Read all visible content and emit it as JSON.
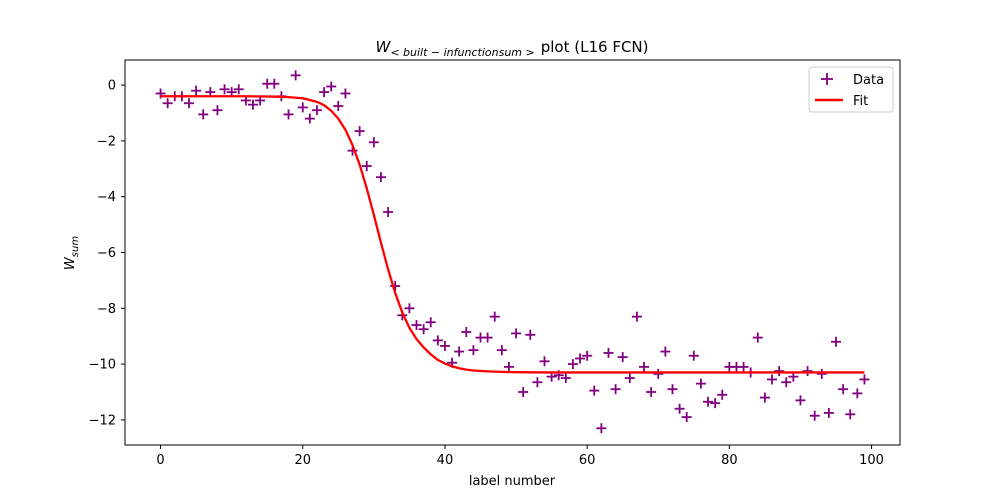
{
  "chart_data": {
    "type": "scatter",
    "title": "W_{<built-infunctionsum>} plot (L16 FCN)",
    "title_parts": {
      "math": "W",
      "sub": "< built − infunctionsum >",
      "rest": "plot (L16 FCN)"
    },
    "xlabel": "label number",
    "ylabel_parts": {
      "main": "W",
      "sub": "sum"
    },
    "xlim": [
      -5,
      104
    ],
    "ylim": [
      -12.9,
      0.9
    ],
    "xticks": [
      0,
      20,
      40,
      60,
      80,
      100
    ],
    "yticks": [
      0,
      -2,
      -4,
      -6,
      -8,
      -10,
      -12
    ],
    "xtick_labels": [
      "0",
      "20",
      "40",
      "60",
      "80",
      "100"
    ],
    "ytick_labels": [
      "0",
      "−2",
      "−4",
      "−6",
      "−8",
      "−10",
      "−12"
    ],
    "legend_position": "top-right",
    "grid": false,
    "series": [
      {
        "name": "Data",
        "kind": "scatter",
        "marker": "+",
        "color": "#800080",
        "x": [
          0,
          1,
          2,
          3,
          4,
          5,
          6,
          7,
          8,
          9,
          10,
          11,
          12,
          13,
          14,
          15,
          16,
          17,
          18,
          19,
          20,
          21,
          22,
          23,
          24,
          25,
          26,
          27,
          28,
          29,
          30,
          31,
          32,
          33,
          34,
          35,
          36,
          37,
          38,
          39,
          40,
          41,
          42,
          43,
          44,
          45,
          46,
          47,
          48,
          49,
          50,
          51,
          52,
          53,
          54,
          55,
          56,
          57,
          58,
          59,
          60,
          61,
          62,
          63,
          64,
          65,
          66,
          67,
          68,
          69,
          70,
          71,
          72,
          73,
          74,
          75,
          76,
          77,
          78,
          79,
          80,
          81,
          82,
          83,
          84,
          85,
          86,
          87,
          88,
          89,
          90,
          91,
          92,
          93,
          94,
          95,
          96,
          97,
          98,
          99
        ],
        "y": [
          -0.3,
          -0.65,
          -0.4,
          -0.4,
          -0.65,
          -0.2,
          -1.05,
          -0.25,
          -0.9,
          -0.15,
          -0.25,
          -0.15,
          -0.55,
          -0.7,
          -0.55,
          0.05,
          0.05,
          -0.4,
          -1.05,
          0.35,
          -0.8,
          -1.2,
          -0.9,
          -0.25,
          -0.05,
          -0.75,
          -0.3,
          -2.35,
          -1.65,
          -2.9,
          -2.05,
          -3.3,
          -4.55,
          -7.2,
          -8.25,
          -8.0,
          -8.6,
          -8.75,
          -8.5,
          -9.15,
          -9.35,
          -9.95,
          -9.55,
          -8.85,
          -9.5,
          -9.05,
          -9.05,
          -8.3,
          -9.5,
          -10.1,
          -8.9,
          -11.0,
          -8.95,
          -10.65,
          -9.9,
          -10.45,
          -10.4,
          -10.5,
          -10.0,
          -9.8,
          -9.7,
          -10.95,
          -12.3,
          -9.6,
          -10.9,
          -9.75,
          -10.5,
          -8.3,
          -10.1,
          -11.0,
          -10.35,
          -9.55,
          -10.9,
          -11.6,
          -11.9,
          -9.7,
          -10.7,
          -11.35,
          -11.4,
          -11.1,
          -10.1,
          -10.1,
          -10.1,
          -10.3,
          -9.05,
          -11.2,
          -10.55,
          -10.25,
          -10.65,
          -10.45,
          -11.3,
          -10.25,
          -11.85,
          -10.35,
          -11.75,
          -9.2,
          -10.9,
          -11.8,
          -11.05,
          -10.55
        ]
      },
      {
        "name": "Fit",
        "kind": "line",
        "color": "#ff0000",
        "x": [
          0,
          4,
          8,
          12,
          16,
          18,
          20,
          22,
          23,
          24,
          25,
          26,
          27,
          28,
          29,
          30,
          31,
          32,
          33,
          34,
          35,
          36,
          37,
          38,
          39,
          40,
          41,
          42,
          43,
          44,
          46,
          48,
          50,
          55,
          60,
          70,
          80,
          90,
          99
        ],
        "y": [
          -0.4,
          -0.4,
          -0.4,
          -0.4,
          -0.41,
          -0.43,
          -0.47,
          -0.6,
          -0.72,
          -0.92,
          -1.2,
          -1.6,
          -2.15,
          -2.85,
          -3.7,
          -4.65,
          -5.65,
          -6.6,
          -7.45,
          -8.15,
          -8.7,
          -9.1,
          -9.4,
          -9.65,
          -9.85,
          -9.98,
          -10.08,
          -10.15,
          -10.2,
          -10.23,
          -10.26,
          -10.28,
          -10.29,
          -10.3,
          -10.3,
          -10.3,
          -10.3,
          -10.3,
          -10.3
        ]
      }
    ]
  }
}
